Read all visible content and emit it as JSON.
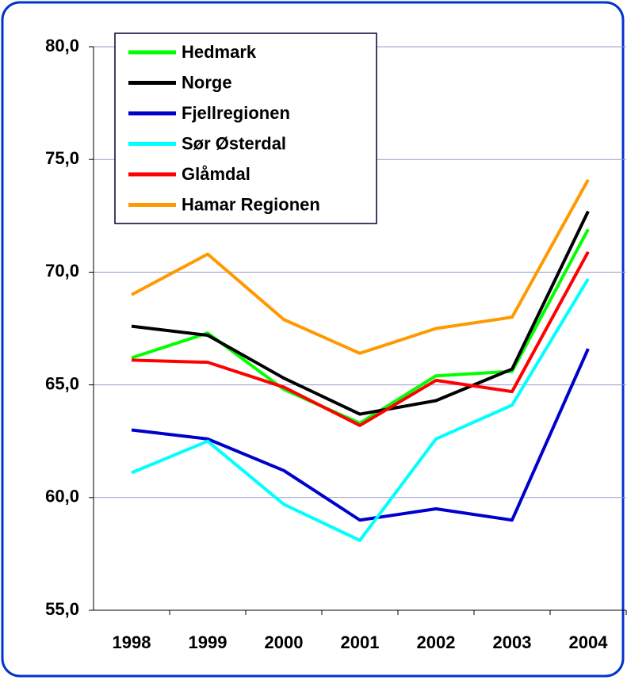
{
  "chart_data": {
    "type": "line",
    "categories": [
      "1998",
      "1999",
      "2000",
      "2001",
      "2002",
      "2003",
      "2004"
    ],
    "series": [
      {
        "name": "Hedmark",
        "color": "#00ff00",
        "values": [
          66.2,
          67.3,
          64.8,
          63.3,
          65.4,
          65.6,
          71.9
        ]
      },
      {
        "name": "Norge",
        "color": "#000000",
        "values": [
          67.6,
          67.2,
          65.3,
          63.7,
          64.3,
          65.7,
          72.7
        ]
      },
      {
        "name": "Fjellregionen",
        "color": "#0000cc",
        "values": [
          63.0,
          62.6,
          61.2,
          59.0,
          59.5,
          59.0,
          66.6
        ]
      },
      {
        "name": "Sør Østerdal",
        "color": "#00ffff",
        "values": [
          61.1,
          62.5,
          59.7,
          58.1,
          62.6,
          64.1,
          69.7
        ]
      },
      {
        "name": "Glåmdal",
        "color": "#ff0000",
        "values": [
          66.1,
          66.0,
          64.9,
          63.2,
          65.2,
          64.7,
          70.9
        ]
      },
      {
        "name": "Hamar Regionen",
        "color": "#ff9900",
        "values": [
          69.0,
          70.8,
          67.9,
          66.4,
          67.5,
          68.0,
          74.1
        ]
      }
    ],
    "ylim": [
      55,
      80
    ],
    "yticks": [
      {
        "value": 55,
        "label": "55,0"
      },
      {
        "value": 60,
        "label": "60,0"
      },
      {
        "value": 65,
        "label": "65,0"
      },
      {
        "value": 70,
        "label": "70,0"
      },
      {
        "value": 75,
        "label": "75,0"
      },
      {
        "value": 80,
        "label": "80,0"
      }
    ],
    "grid": true,
    "legend": "top-left"
  }
}
